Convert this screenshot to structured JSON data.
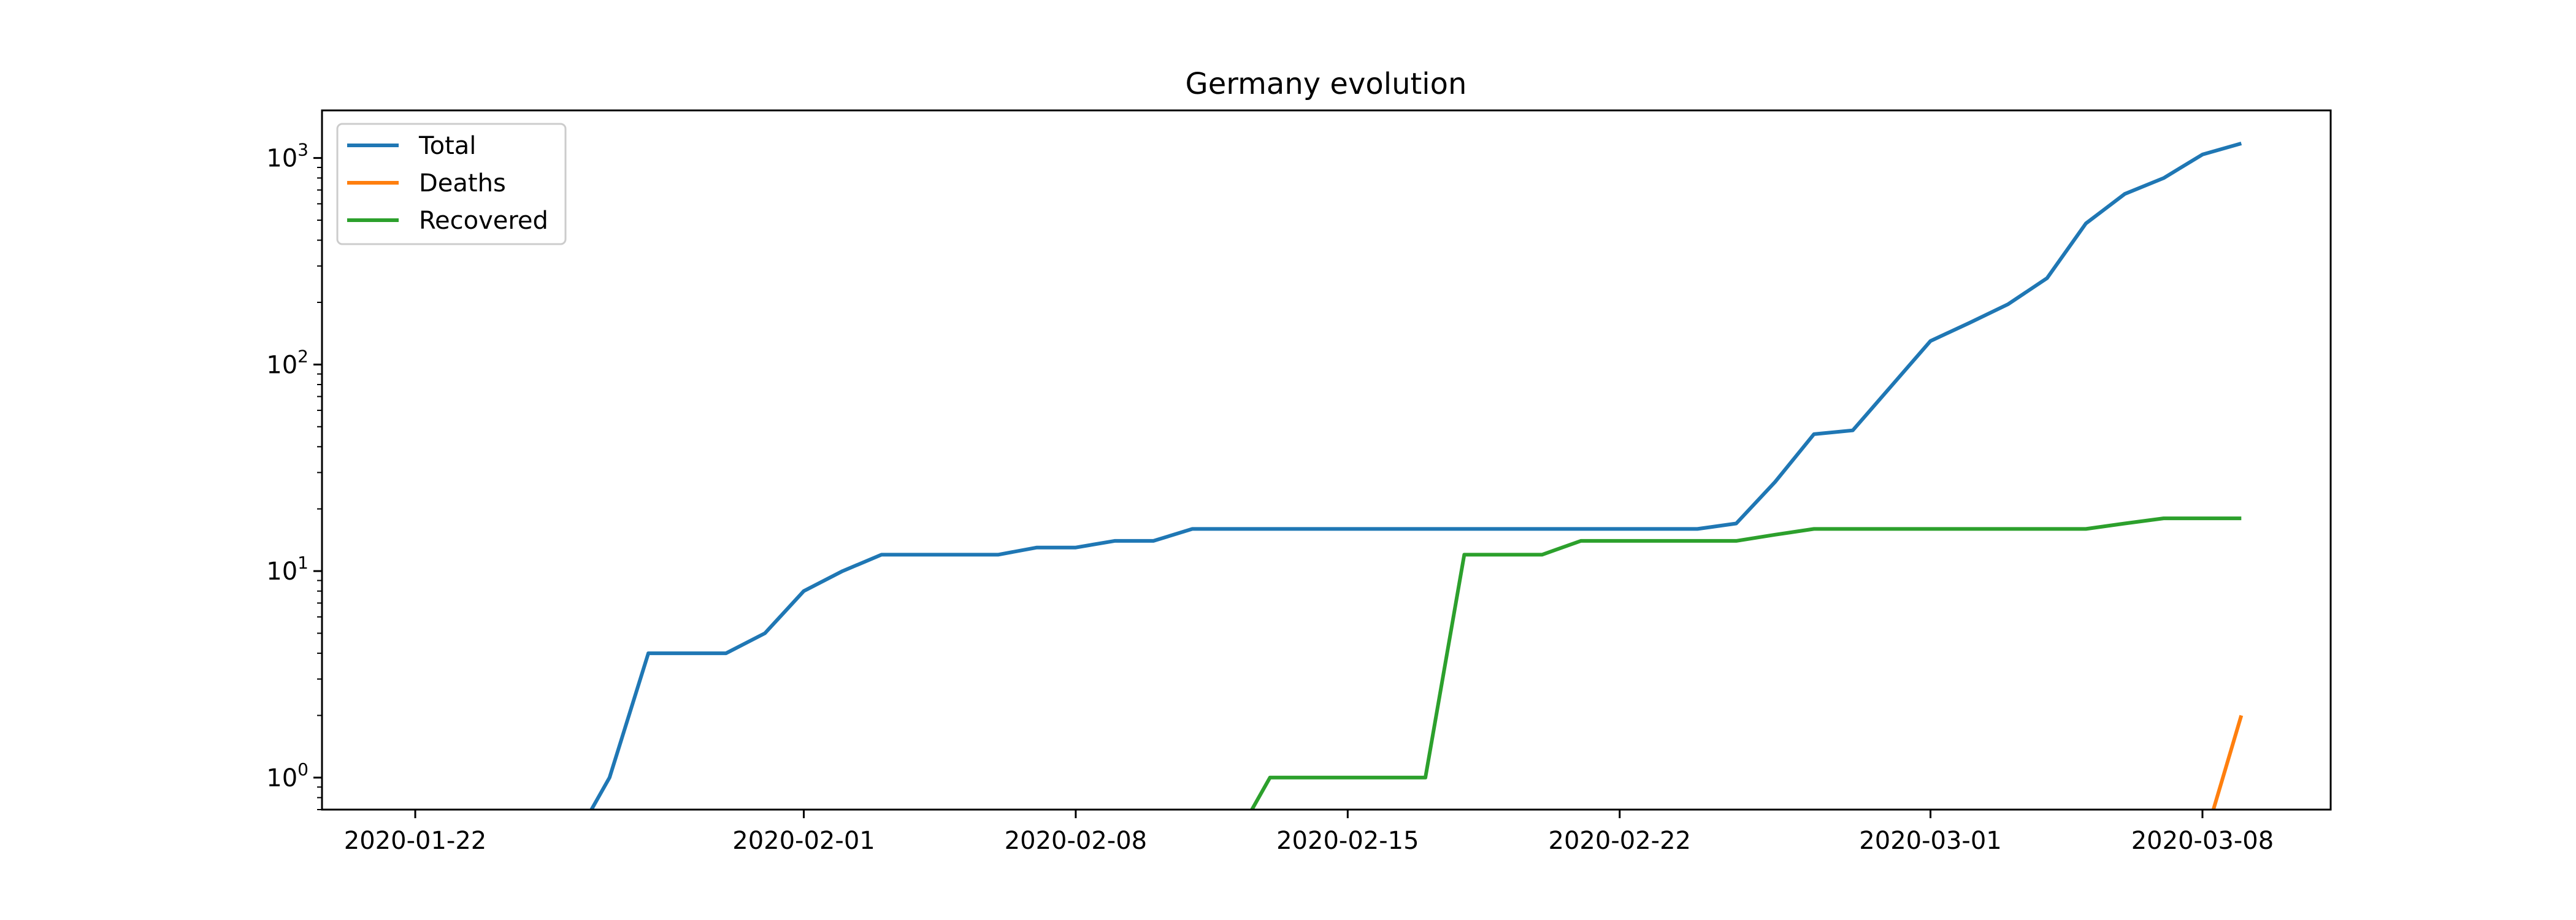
{
  "chart_data": {
    "type": "line",
    "title": "Germany evolution",
    "xlabel": "",
    "ylabel": "",
    "yscale": "log",
    "ylim": [
      0.7,
      1700
    ],
    "xlim": [
      "2020-01-19.6",
      "2020-03-11.3"
    ],
    "grid": false,
    "legend_placement": "top-left",
    "x_ticks": [
      "2020-01-22",
      "2020-02-01",
      "2020-02-08",
      "2020-02-15",
      "2020-02-22",
      "2020-03-01",
      "2020-03-08"
    ],
    "y_ticks": [
      {
        "value": 1,
        "base": "10",
        "exp": "0"
      },
      {
        "value": 10,
        "base": "10",
        "exp": "1"
      },
      {
        "value": 100,
        "base": "10",
        "exp": "2"
      },
      {
        "value": 1000,
        "base": "10",
        "exp": "3"
      }
    ],
    "dates": [
      "2020-01-22",
      "2020-01-23",
      "2020-01-24",
      "2020-01-25",
      "2020-01-26",
      "2020-01-27",
      "2020-01-28",
      "2020-01-29",
      "2020-01-30",
      "2020-01-31",
      "2020-02-01",
      "2020-02-02",
      "2020-02-03",
      "2020-02-04",
      "2020-02-05",
      "2020-02-06",
      "2020-02-07",
      "2020-02-08",
      "2020-02-09",
      "2020-02-10",
      "2020-02-11",
      "2020-02-12",
      "2020-02-13",
      "2020-02-14",
      "2020-02-15",
      "2020-02-16",
      "2020-02-17",
      "2020-02-18",
      "2020-02-19",
      "2020-02-20",
      "2020-02-21",
      "2020-02-22",
      "2020-02-23",
      "2020-02-24",
      "2020-02-25",
      "2020-02-26",
      "2020-02-27",
      "2020-02-28",
      "2020-02-29",
      "2020-03-01",
      "2020-03-02",
      "2020-03-03",
      "2020-03-04",
      "2020-03-05",
      "2020-03-06",
      "2020-03-07",
      "2020-03-08",
      "2020-03-09"
    ],
    "series": [
      {
        "name": "Total",
        "color": "#1f77b4",
        "values": [
          0,
          0,
          0,
          0,
          0,
          1,
          4,
          4,
          4,
          5,
          8,
          10,
          12,
          12,
          12,
          12,
          13,
          13,
          14,
          14,
          16,
          16,
          16,
          16,
          16,
          16,
          16,
          16,
          16,
          16,
          16,
          16,
          16,
          16,
          17,
          27,
          46,
          48,
          79,
          130,
          159,
          196,
          262,
          482,
          670,
          799,
          1040,
          1176
        ]
      },
      {
        "name": "Deaths",
        "color": "#ff7f0e",
        "values": [
          0,
          0,
          0,
          0,
          0,
          0,
          0,
          0,
          0,
          0,
          0,
          0,
          0,
          0,
          0,
          0,
          0,
          0,
          0,
          0,
          0,
          0,
          0,
          0,
          0,
          0,
          0,
          0,
          0,
          0,
          0,
          0,
          0,
          0,
          0,
          0,
          0,
          0,
          0,
          0,
          0,
          0,
          0,
          0,
          0,
          0,
          0,
          2
        ]
      },
      {
        "name": "Recovered",
        "color": "#2ca02c",
        "values": [
          0,
          0,
          0,
          0,
          0,
          0,
          0,
          0,
          0,
          0,
          0,
          0,
          0,
          0,
          0,
          0,
          0,
          0,
          0,
          0,
          0,
          0,
          1,
          1,
          1,
          1,
          1,
          12,
          12,
          12,
          14,
          14,
          14,
          14,
          14,
          15,
          16,
          16,
          16,
          16,
          16,
          16,
          16,
          16,
          17,
          18,
          18,
          18
        ]
      }
    ]
  }
}
